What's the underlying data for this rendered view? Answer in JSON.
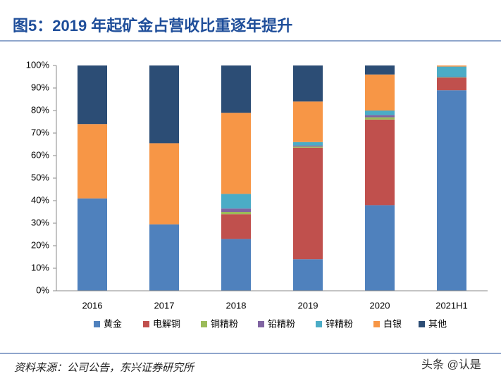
{
  "chart_data": {
    "type": "stacked_bar",
    "title": "图5：2019 年起矿金占营收比重逐年提升",
    "source": "资料来源：公司公告，东兴证券研究所",
    "watermark": "头条 @认是",
    "categories": [
      "2016",
      "2017",
      "2018",
      "2019",
      "2020",
      "2021H1"
    ],
    "series": [
      {
        "name": "黄金",
        "color": "#4f81bd",
        "values": [
          41,
          29.5,
          23,
          14,
          38,
          89
        ]
      },
      {
        "name": "电解铜",
        "color": "#c0504d",
        "values": [
          0,
          0,
          11,
          49.5,
          38,
          5.5
        ]
      },
      {
        "name": "铜精粉",
        "color": "#9bbb59",
        "values": [
          0,
          0,
          1,
          0.5,
          1,
          0.2
        ]
      },
      {
        "name": "铅精粉",
        "color": "#8064a2",
        "values": [
          0,
          0,
          1.5,
          0.5,
          1,
          0.3
        ]
      },
      {
        "name": "锌精粉",
        "color": "#4bacc6",
        "values": [
          0,
          0,
          6.5,
          1.5,
          2,
          4.5
        ]
      },
      {
        "name": "白银",
        "color": "#f79646",
        "values": [
          33,
          36,
          36,
          18,
          16,
          0.5
        ]
      },
      {
        "name": "其他",
        "color": "#2c4d75",
        "values": [
          26,
          34.5,
          21,
          16,
          4,
          0
        ]
      }
    ],
    "ylim": [
      0,
      100
    ],
    "yticks": [
      {
        "value": 0,
        "label": "0%"
      },
      {
        "value": 10,
        "label": "10%"
      },
      {
        "value": 20,
        "label": "20%"
      },
      {
        "value": 30,
        "label": "30%"
      },
      {
        "value": 40,
        "label": "40%"
      },
      {
        "value": 50,
        "label": "50%"
      },
      {
        "value": 60,
        "label": "60%"
      },
      {
        "value": 70,
        "label": "70%"
      },
      {
        "value": 80,
        "label": "80%"
      },
      {
        "value": 90,
        "label": "90%"
      },
      {
        "value": 100,
        "label": "100%"
      }
    ],
    "grid": false,
    "legend": "bottom"
  }
}
